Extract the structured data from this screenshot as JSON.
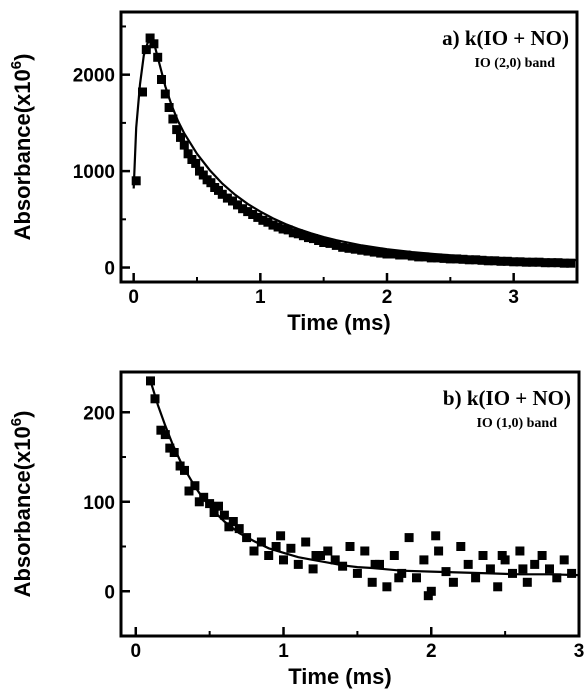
{
  "chart_data": [
    {
      "type": "scatter",
      "panel_label": "a)",
      "title": "k(IO + NO)",
      "subtitle": "IO (2,0) band",
      "xlabel": "Time (ms)",
      "ylabel": "Absorbance(x10",
      "ylabel_exponent": "6",
      "ylabel_close": ")",
      "xlim": [
        -0.1,
        3.5
      ],
      "ylim": [
        -150,
        2650
      ],
      "xticks": [
        0,
        1,
        2,
        3
      ],
      "xtick_labels": [
        "0",
        "1",
        "2",
        "3"
      ],
      "yticks": [
        0,
        1000,
        2000
      ],
      "ytick_labels": [
        "0",
        "1000",
        "2000"
      ],
      "grid": false,
      "series": [
        {
          "kind": "markers",
          "x": [
            0.02,
            0.07,
            0.1,
            0.13,
            0.16,
            0.19,
            0.22,
            0.25,
            0.28,
            0.31,
            0.34,
            0.37,
            0.4,
            0.43,
            0.46,
            0.49,
            0.52,
            0.55,
            0.58,
            0.61,
            0.64,
            0.67,
            0.7,
            0.74,
            0.78,
            0.82,
            0.86,
            0.9,
            0.94,
            0.98,
            1.02,
            1.06,
            1.1,
            1.14,
            1.18,
            1.22,
            1.26,
            1.3,
            1.34,
            1.38,
            1.42,
            1.46,
            1.5,
            1.55,
            1.6,
            1.65,
            1.7,
            1.75,
            1.8,
            1.85,
            1.9,
            1.95,
            2.0,
            2.05,
            2.1,
            2.15,
            2.2,
            2.25,
            2.3,
            2.35,
            2.4,
            2.45,
            2.5,
            2.55,
            2.6,
            2.65,
            2.7,
            2.75,
            2.8,
            2.85,
            2.9,
            2.95,
            3.0,
            3.05,
            3.1,
            3.15,
            3.2,
            3.25,
            3.3,
            3.35,
            3.4,
            3.45
          ],
          "y": [
            900,
            1820,
            2260,
            2380,
            2320,
            2180,
            1950,
            1800,
            1660,
            1540,
            1430,
            1350,
            1270,
            1180,
            1120,
            1080,
            1000,
            960,
            910,
            880,
            830,
            800,
            760,
            720,
            690,
            650,
            610,
            580,
            550,
            520,
            490,
            470,
            440,
            420,
            400,
            390,
            360,
            350,
            330,
            310,
            300,
            280,
            260,
            250,
            230,
            210,
            200,
            190,
            180,
            170,
            160,
            150,
            140,
            140,
            130,
            130,
            120,
            110,
            110,
            100,
            100,
            95,
            90,
            90,
            85,
            80,
            80,
            75,
            70,
            70,
            65,
            65,
            60,
            60,
            55,
            55,
            55,
            50,
            50,
            50,
            45,
            45
          ]
        },
        {
          "kind": "fit",
          "x": [
            0,
            0.02,
            0.05,
            0.08,
            0.11,
            0.14,
            0.17,
            0.2,
            0.25,
            0.3,
            0.35,
            0.4,
            0.5,
            0.6,
            0.7,
            0.8,
            0.9,
            1,
            1.1,
            1.2,
            1.3,
            1.4,
            1.5,
            1.6,
            1.8,
            2,
            2.2,
            2.4,
            2.6,
            2.8,
            3,
            3.2,
            3.4,
            3.5
          ],
          "y": [
            820,
            1450,
            1900,
            2200,
            2330,
            2360,
            2280,
            2130,
            1880,
            1680,
            1520,
            1390,
            1180,
            1010,
            870,
            755,
            660,
            580,
            510,
            450,
            400,
            355,
            316,
            283,
            230,
            190,
            160,
            136,
            118,
            104,
            93,
            85,
            79,
            77
          ]
        }
      ]
    },
    {
      "type": "scatter",
      "panel_label": "b)",
      "title": "k(IO + NO)",
      "subtitle": "IO (1,0) band",
      "xlabel": "Time (ms)",
      "ylabel": "Absorbance(x10",
      "ylabel_exponent": "6",
      "ylabel_close": ")",
      "xlim": [
        -0.1,
        3.0
      ],
      "ylim": [
        -50,
        245
      ],
      "xticks": [
        0,
        1,
        2,
        3
      ],
      "xtick_labels": [
        "0",
        "1",
        "2",
        "3"
      ],
      "yticks": [
        0,
        100,
        200
      ],
      "ytick_labels": [
        "0",
        "100",
        "200"
      ],
      "grid": false,
      "series": [
        {
          "kind": "markers",
          "x": [
            0.1,
            0.13,
            0.17,
            0.2,
            0.23,
            0.26,
            0.3,
            0.33,
            0.36,
            0.4,
            0.43,
            0.46,
            0.5,
            0.53,
            0.56,
            0.6,
            0.63,
            0.66,
            0.7,
            0.75,
            0.8,
            0.85,
            0.9,
            0.95,
            1.0,
            1.05,
            1.1,
            1.15,
            1.2,
            1.25,
            1.3,
            1.35,
            1.4,
            1.45,
            1.5,
            1.55,
            1.6,
            1.65,
            1.7,
            1.75,
            1.8,
            1.85,
            1.9,
            1.95,
            2.0,
            2.05,
            2.1,
            2.15,
            2.2,
            2.25,
            2.3,
            2.35,
            2.4,
            2.45,
            2.5,
            2.55,
            2.6,
            2.65,
            2.7,
            2.75,
            2.8,
            2.85,
            2.9,
            2.95,
            0.98,
            1.62,
            1.98,
            2.03,
            2.48,
            2.62,
            1.22,
            1.78
          ],
          "y": [
            235,
            215,
            180,
            175,
            160,
            155,
            140,
            135,
            112,
            118,
            100,
            105,
            98,
            88,
            95,
            85,
            72,
            78,
            70,
            60,
            45,
            55,
            40,
            50,
            35,
            48,
            30,
            55,
            25,
            40,
            45,
            35,
            28,
            50,
            20,
            45,
            10,
            30,
            5,
            40,
            20,
            60,
            15,
            35,
            0,
            45,
            22,
            10,
            50,
            30,
            15,
            40,
            25,
            5,
            35,
            20,
            45,
            10,
            30,
            40,
            25,
            15,
            35,
            20,
            62,
            30,
            -5,
            62,
            40,
            25,
            40,
            15
          ]
        },
        {
          "kind": "fit",
          "x": [
            0.1,
            0.15,
            0.2,
            0.25,
            0.3,
            0.35,
            0.4,
            0.45,
            0.5,
            0.55,
            0.6,
            0.7,
            0.8,
            0.9,
            1,
            1.1,
            1.2,
            1.3,
            1.4,
            1.5,
            1.6,
            1.8,
            2,
            2.2,
            2.4,
            2.6,
            2.8,
            3
          ],
          "y": [
            235,
            208,
            185,
            164,
            146,
            131,
            117,
            105,
            95,
            86,
            78,
            65,
            56,
            48,
            43,
            38,
            35,
            32,
            29,
            27,
            26,
            23,
            22,
            21,
            20,
            19,
            19,
            18
          ]
        }
      ]
    }
  ]
}
